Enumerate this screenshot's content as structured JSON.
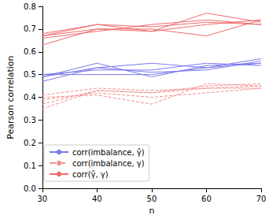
{
  "chart_data": {
    "type": "line",
    "xlabel": "n",
    "ylabel": "Pearson correlation",
    "x": [
      30,
      40,
      50,
      60,
      70
    ],
    "xlim": [
      30,
      70
    ],
    "xticks": [
      30,
      40,
      50,
      60,
      70
    ],
    "ylim": [
      0,
      0.8
    ],
    "yticks": [
      {
        "value": 0,
        "label": "0.0"
      },
      0.1,
      0.2,
      0.3,
      0.4,
      0.5,
      0.6,
      0.7,
      0.8
    ],
    "grid": false,
    "legend": "lower left",
    "series": [
      {
        "name": "corr(imbalance, γ̂)",
        "color": "#7b7bec",
        "line_style": "solid",
        "values": [
          0.47,
          0.53,
          0.51,
          0.52,
          0.56
        ]
      },
      {
        "name": "corr(imbalance, γ̂)",
        "color": "#7b7bec",
        "line_style": "solid",
        "values": [
          0.49,
          0.55,
          0.49,
          0.54,
          0.55
        ]
      },
      {
        "name": "corr(imbalance, γ̂)",
        "color": "#7b7bec",
        "line_style": "solid",
        "values": [
          0.5,
          0.52,
          0.52,
          0.55,
          0.54
        ]
      },
      {
        "name": "corr(imbalance, γ̂)",
        "color": "#7b7bec",
        "line_style": "solid",
        "values": [
          0.5,
          0.5,
          0.5,
          0.53,
          0.57
        ]
      },
      {
        "name": "corr(imbalance, γ̂)",
        "color": "#7b7bec",
        "line_style": "solid",
        "values": [
          0.49,
          0.53,
          0.55,
          0.53,
          0.55
        ]
      },
      {
        "name": "corr(imbalance, γ)",
        "color": "#f29090",
        "line_style": "dashed",
        "values": [
          0.35,
          0.43,
          0.42,
          0.44,
          0.44
        ]
      },
      {
        "name": "corr(imbalance, γ)",
        "color": "#f29090",
        "line_style": "dashed",
        "values": [
          0.4,
          0.41,
          0.37,
          0.46,
          0.45
        ]
      },
      {
        "name": "corr(imbalance, γ)",
        "color": "#f29090",
        "line_style": "dashed",
        "values": [
          0.41,
          0.44,
          0.43,
          0.44,
          0.45
        ]
      },
      {
        "name": "corr(imbalance, γ)",
        "color": "#f29090",
        "line_style": "dashed",
        "values": [
          0.39,
          0.42,
          0.4,
          0.42,
          0.44
        ]
      },
      {
        "name": "corr(imbalance, γ)",
        "color": "#f29090",
        "line_style": "dashed",
        "values": [
          0.37,
          0.43,
          0.42,
          0.45,
          0.46
        ]
      },
      {
        "name": "corr(γ̂, γ)",
        "color": "#f06a6a",
        "line_style": "solid",
        "values": [
          0.63,
          0.7,
          0.69,
          0.77,
          0.73
        ]
      },
      {
        "name": "corr(γ̂, γ)",
        "color": "#f06a6a",
        "line_style": "solid",
        "values": [
          0.66,
          0.69,
          0.72,
          0.74,
          0.72
        ]
      },
      {
        "name": "corr(γ̂, γ)",
        "color": "#f06a6a",
        "line_style": "solid",
        "values": [
          0.67,
          0.7,
          0.7,
          0.67,
          0.74
        ]
      },
      {
        "name": "corr(γ̂, γ)",
        "color": "#f06a6a",
        "line_style": "solid",
        "values": [
          0.68,
          0.72,
          0.69,
          0.72,
          0.74
        ]
      },
      {
        "name": "corr(γ̂, γ)",
        "color": "#f06a6a",
        "line_style": "solid",
        "values": [
          0.67,
          0.72,
          0.71,
          0.73,
          0.72
        ]
      }
    ]
  }
}
